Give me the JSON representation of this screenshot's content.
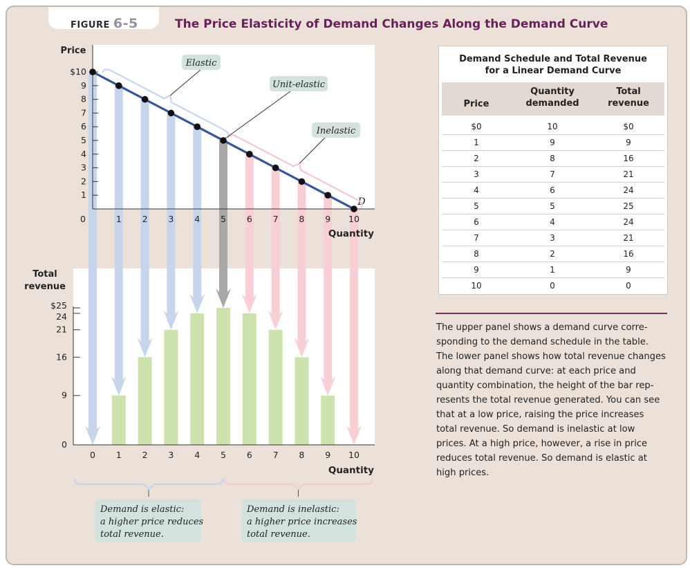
{
  "figure_label": "FIGURE",
  "figure_number": "6-5",
  "figure_title": "The Price Elasticity of Demand Changes Along the Demand Curve",
  "colors": {
    "demand_line": "#34559b",
    "elastic_arrow": "#c7d5ec",
    "unit_arrow": "#a8a8a8",
    "inelastic_arrow": "#f7cfd4",
    "revenue_bar": "#cde2ad",
    "callout_bg": "#d3e2df",
    "title_color": "#6a1e5a",
    "rule_color": "#7b2a66"
  },
  "chart_data": [
    {
      "type": "line",
      "panel": "upper",
      "ylabel": "Price",
      "xlabel": "Quantity",
      "x": [
        0,
        1,
        2,
        3,
        4,
        5,
        6,
        7,
        8,
        9,
        10
      ],
      "y": [
        10,
        9,
        8,
        7,
        6,
        5,
        4,
        3,
        2,
        1,
        0
      ],
      "xlim": [
        0,
        10
      ],
      "ylim": [
        0,
        10
      ],
      "x_ticks": [
        "0",
        "1",
        "2",
        "3",
        "4",
        "5",
        "6",
        "7",
        "8",
        "9",
        "10"
      ],
      "y_ticks": [
        "$10",
        "9",
        "8",
        "7",
        "6",
        "5",
        "4",
        "3",
        "2",
        "1"
      ],
      "curve_label": "D",
      "annotations": [
        "Elastic",
        "Unit-elastic",
        "Inelastic"
      ],
      "grid": false
    },
    {
      "type": "bar",
      "panel": "lower",
      "ylabel": "Total revenue",
      "xlabel": "Quantity",
      "categories": [
        "0",
        "1",
        "2",
        "3",
        "4",
        "5",
        "6",
        "7",
        "8",
        "9",
        "10"
      ],
      "values": [
        0,
        9,
        16,
        21,
        24,
        25,
        24,
        21,
        16,
        9,
        0
      ],
      "ylim": [
        0,
        25
      ],
      "y_ticks": [
        "$25",
        "24",
        "21",
        "16",
        "9",
        "0"
      ],
      "grid": false
    }
  ],
  "bottom_notes": {
    "elastic": [
      "Demand is elastic:",
      "a higher price reduces",
      "total revenue."
    ],
    "inelastic": [
      "Demand is inelastic:",
      "a higher price increases",
      "total revenue."
    ]
  },
  "table": {
    "title_lines": [
      "Demand Schedule and Total Revenue",
      "for a Linear Demand Curve"
    ],
    "headers": {
      "price": [
        "Price"
      ],
      "quantity": [
        "Quantity",
        "demanded"
      ],
      "revenue": [
        "Total",
        "revenue"
      ]
    },
    "rows": [
      {
        "price": "$0",
        "quantity": "10",
        "revenue": "$0"
      },
      {
        "price": "1",
        "quantity": "9",
        "revenue": "9"
      },
      {
        "price": "2",
        "quantity": "8",
        "revenue": "16"
      },
      {
        "price": "3",
        "quantity": "7",
        "revenue": "21"
      },
      {
        "price": "4",
        "quantity": "6",
        "revenue": "24"
      },
      {
        "price": "5",
        "quantity": "5",
        "revenue": "25"
      },
      {
        "price": "6",
        "quantity": "4",
        "revenue": "24"
      },
      {
        "price": "7",
        "quantity": "3",
        "revenue": "21"
      },
      {
        "price": "8",
        "quantity": "2",
        "revenue": "16"
      },
      {
        "price": "9",
        "quantity": "1",
        "revenue": "9"
      },
      {
        "price": "10",
        "quantity": "0",
        "revenue": "0"
      }
    ]
  },
  "caption_lines": [
    "The upper panel shows a demand curve corre-",
    "sponding to the demand schedule in the table.",
    "The lower panel shows how total revenue changes",
    "along that demand curve: at each price and",
    "quantity combination, the height of the bar rep-",
    "resents the total revenue generated. You can see",
    "that at a low price, raising the price increases",
    "total revenue. So demand is inelastic at low",
    "prices. At a high price, however, a rise in price",
    "reduces total revenue. So demand is elastic at",
    "high prices."
  ]
}
